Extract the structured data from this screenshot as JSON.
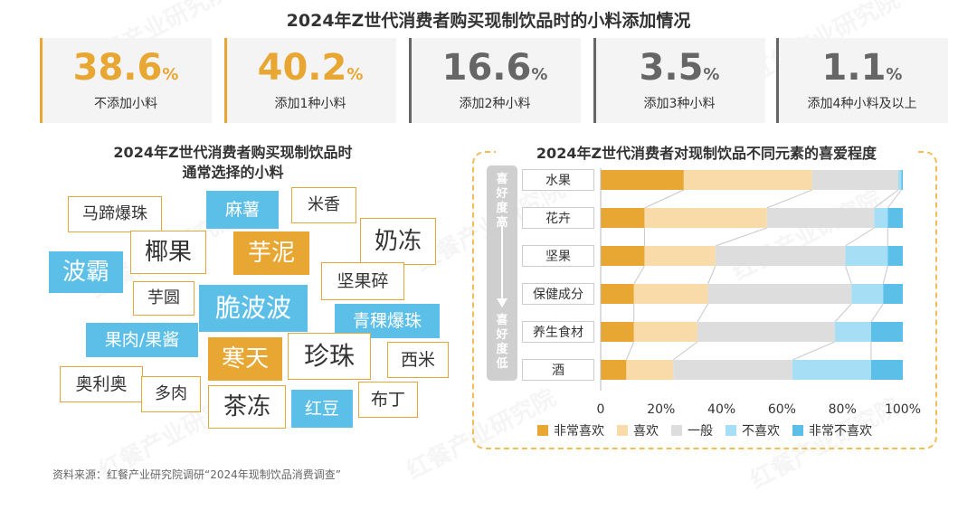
{
  "main_title": "2024年Z世代消费者购买现制饮品时的小料添加情况",
  "stats": [
    {
      "number": "38.6",
      "unit": "%",
      "label": "不添加小料",
      "color": "#e8a632"
    },
    {
      "number": "40.2",
      "unit": "%",
      "label": "添加1种小料",
      "color": "#e8a632"
    },
    {
      "number": "16.6",
      "unit": "%",
      "label": "添加2种小料",
      "color": "#666666"
    },
    {
      "number": "3.5",
      "unit": "%",
      "label": "添加3种小料",
      "color": "#666666"
    },
    {
      "number": "1.1",
      "unit": "%",
      "label": "添加4种小料及以上",
      "color": "#666666"
    }
  ],
  "left_title_line1": "2024年Z世代消费者购买现制饮品时",
  "left_title_line2": "通常选择的小料",
  "word_cloud": [
    {
      "text": "马蹄爆珠",
      "style": "outline"
    },
    {
      "text": "麻薯",
      "style": "blue"
    },
    {
      "text": "米香",
      "style": "outline"
    },
    {
      "text": "奶冻",
      "style": "outline"
    },
    {
      "text": "椰果",
      "style": "outline"
    },
    {
      "text": "芋泥",
      "style": "orange"
    },
    {
      "text": "波霸",
      "style": "blue"
    },
    {
      "text": "坚果碎",
      "style": "outline"
    },
    {
      "text": "芋圆",
      "style": "outline"
    },
    {
      "text": "脆波波",
      "style": "blue"
    },
    {
      "text": "青稞爆珠",
      "style": "blue"
    },
    {
      "text": "果肉/果酱",
      "style": "blue"
    },
    {
      "text": "寒天",
      "style": "orange"
    },
    {
      "text": "珍珠",
      "style": "outline"
    },
    {
      "text": "西米",
      "style": "outline"
    },
    {
      "text": "奥利奥",
      "style": "outline"
    },
    {
      "text": "多肉",
      "style": "outline"
    },
    {
      "text": "茶冻",
      "style": "outline"
    },
    {
      "text": "红豆",
      "style": "blue"
    },
    {
      "text": "布丁",
      "style": "outline"
    }
  ],
  "side_top": [
    "喜",
    "好",
    "度",
    "高"
  ],
  "side_bottom": [
    "喜",
    "好",
    "度",
    "低"
  ],
  "colors": {
    "accent": "#e8a632",
    "blue": "#5cbfe8",
    "frame": "#f0bd5a"
  },
  "chart_data": {
    "type": "bar",
    "orientation": "horizontal",
    "stacked": true,
    "title": "2024年Z世代消费者对现制饮品不同元素的喜爱程度",
    "categories": [
      "水果",
      "花卉",
      "坚果",
      "保健成分",
      "养生食材",
      "酒"
    ],
    "x_ticks": [
      "0",
      "20%",
      "40%",
      "60%",
      "80%",
      "100%"
    ],
    "xlim": [
      0,
      100
    ],
    "grid": false,
    "legend_position": "bottom",
    "series": [
      {
        "name": "非常喜欢",
        "color": "#e8a632",
        "values": [
          27.5,
          14.5,
          14.5,
          11,
          11,
          8.5
        ]
      },
      {
        "name": "喜欢",
        "color": "#f8dba8",
        "values": [
          42.5,
          40.5,
          23.5,
          24.5,
          21,
          15.5
        ]
      },
      {
        "name": "一般",
        "color": "#dddddd",
        "values": [
          28.5,
          35.5,
          43,
          47.5,
          45.5,
          39.5
        ]
      },
      {
        "name": "不喜欢",
        "color": "#a6dff5",
        "values": [
          1,
          4.5,
          14,
          10.5,
          12,
          26
        ]
      },
      {
        "name": "非常不喜欢",
        "color": "#5cbfe8",
        "values": [
          0.5,
          5,
          5,
          6.5,
          10.5,
          10.5
        ]
      }
    ]
  },
  "source": "资料来源：红餐产业研究院调研“2024年现制饮品消费调查”",
  "watermark": "红餐产业研究院"
}
